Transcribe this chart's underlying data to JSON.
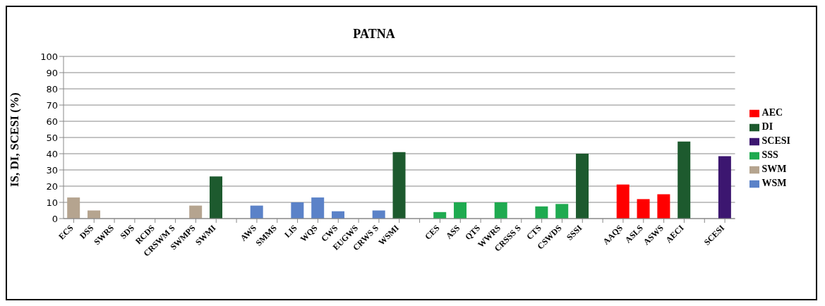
{
  "chart_data": {
    "type": "bar",
    "title": "PATNA",
    "ylabel": "IS, DI, SCESI (%)",
    "categories": [
      "ECS",
      "DSS",
      "SWRS",
      "SDS",
      "RCDS",
      "CRSWM S",
      "SWMPS",
      "SWMI",
      null,
      "AWS",
      "SMMS",
      "LIS",
      "WQS",
      "CWS",
      "EUGWS",
      "CRWS S",
      "WSMI",
      null,
      "CES",
      "ASS",
      "QTS",
      "WWRS",
      "CRSSS S",
      "CTS",
      "CSWDS",
      "SSSI",
      null,
      "AAQS",
      "ASLS",
      "ASWS",
      "AECI",
      null,
      "SCESI"
    ],
    "series": [
      {
        "name": "SWM",
        "color": "#b5a48f",
        "values": [
          13,
          5,
          0,
          0,
          0,
          0,
          8,
          null,
          null,
          null,
          null,
          null,
          null,
          null,
          null,
          null,
          null,
          null,
          null,
          null,
          null,
          null,
          null,
          null,
          null,
          null,
          null,
          null,
          null,
          null,
          null,
          null,
          null
        ]
      },
      {
        "name": "WSM",
        "color": "#5b82c8",
        "values": [
          null,
          null,
          null,
          null,
          null,
          null,
          null,
          null,
          null,
          8,
          0,
          10,
          13,
          4.5,
          0,
          5,
          null,
          null,
          null,
          null,
          null,
          null,
          null,
          null,
          null,
          null,
          null,
          null,
          null,
          null,
          null,
          null,
          null
        ]
      },
      {
        "name": "SSS",
        "color": "#1faa50",
        "values": [
          null,
          null,
          null,
          null,
          null,
          null,
          null,
          null,
          null,
          null,
          null,
          null,
          null,
          null,
          null,
          null,
          null,
          null,
          4,
          10,
          0,
          10,
          0,
          7.5,
          9,
          null,
          null,
          null,
          null,
          null,
          null,
          null,
          null
        ]
      },
      {
        "name": "AEC",
        "color": "#ff0000",
        "values": [
          null,
          null,
          null,
          null,
          null,
          null,
          null,
          null,
          null,
          null,
          null,
          null,
          null,
          null,
          null,
          null,
          null,
          null,
          null,
          null,
          null,
          null,
          null,
          null,
          null,
          null,
          null,
          21,
          12,
          15,
          null,
          null,
          null
        ]
      },
      {
        "name": "DI",
        "color": "#1d5a2e",
        "values": [
          null,
          null,
          null,
          null,
          null,
          null,
          null,
          26,
          null,
          null,
          null,
          null,
          null,
          null,
          null,
          null,
          41,
          null,
          null,
          null,
          null,
          null,
          null,
          null,
          null,
          40,
          null,
          null,
          null,
          null,
          47.5,
          null,
          null
        ]
      },
      {
        "name": "SCESI",
        "color": "#3c1670",
        "values": [
          null,
          null,
          null,
          null,
          null,
          null,
          null,
          null,
          null,
          null,
          null,
          null,
          null,
          null,
          null,
          null,
          null,
          null,
          null,
          null,
          null,
          null,
          null,
          null,
          null,
          null,
          null,
          null,
          null,
          null,
          null,
          null,
          38.5
        ]
      }
    ],
    "stacked": true,
    "ylim": [
      0,
      100
    ],
    "yticks": [
      0,
      10,
      20,
      30,
      40,
      50,
      60,
      70,
      80,
      90,
      100
    ],
    "grid": "y",
    "legend": "right"
  }
}
